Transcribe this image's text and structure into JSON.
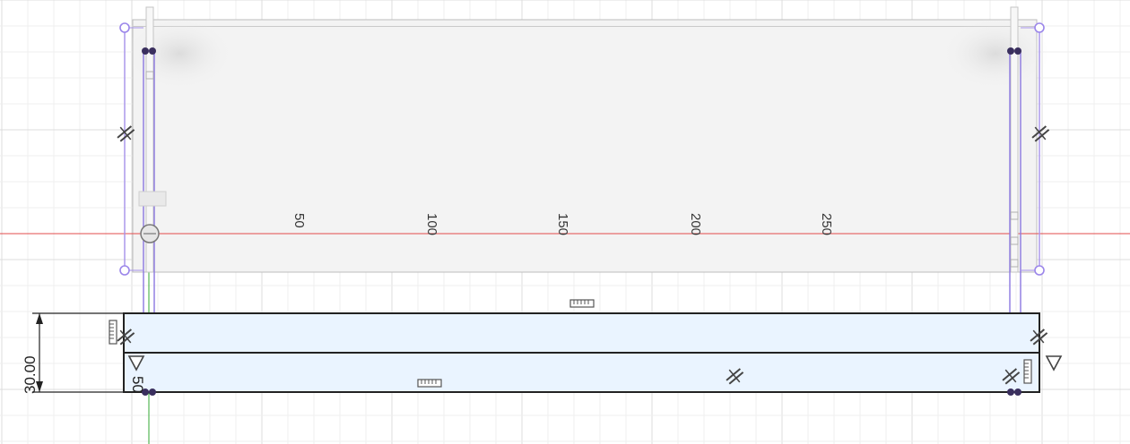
{
  "viewport": {
    "ruler_labels": [
      "50",
      "100",
      "150",
      "200",
      "250"
    ],
    "side_labels": [
      "50"
    ],
    "colors": {
      "background": "#ffffff",
      "grid_minor": "#eeeeee",
      "grid_major": "#dddddd",
      "x_axis": "#e34b4b",
      "y_axis": "#33aa33",
      "plate_fill": "#f2f2f2",
      "plate_edge": "#b8b8b8",
      "rail_line": "#9a86e6",
      "sketch_fill": "#e8f3ff",
      "sketch_line": "#222222",
      "point_dark": "#3a2f5e",
      "constraint_icon": "#444444"
    },
    "constraint_icons": [
      "parallel-constraint-icon",
      "horizontal-constraint-icon",
      "fix-constraint-icon",
      "perpendicular-constraint-icon"
    ]
  },
  "dimension": {
    "value": "30.00"
  }
}
